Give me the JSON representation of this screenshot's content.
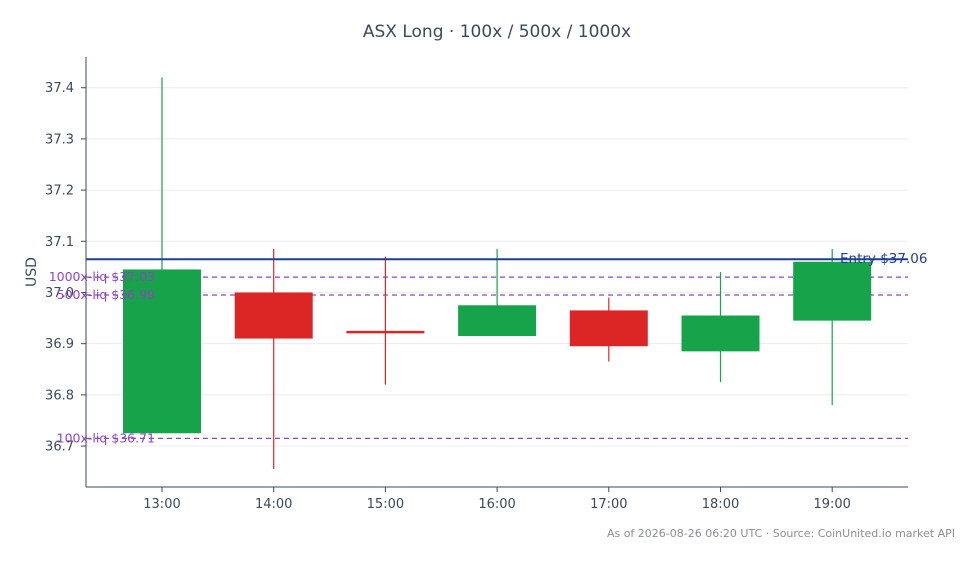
{
  "chart_data": {
    "type": "candlestick",
    "title": "ASX Long · 100x / 500x / 1000x",
    "ylabel": "USD",
    "ylim": [
      36.62,
      37.46
    ],
    "yticks": [
      36.7,
      36.8,
      36.9,
      37.0,
      37.1,
      37.2,
      37.3,
      37.4
    ],
    "ytick_labels": [
      "36.7",
      "36.8",
      "36.9",
      "37.0",
      "37.1",
      "37.2",
      "37.3",
      "37.4"
    ],
    "grid": true,
    "categories": [
      "13:00",
      "14:00",
      "15:00",
      "16:00",
      "17:00",
      "18:00",
      "19:00"
    ],
    "candles": [
      {
        "time": "13:00",
        "open": 36.725,
        "high": 37.42,
        "low": 36.725,
        "close": 37.045
      },
      {
        "time": "14:00",
        "open": 37.0,
        "high": 37.085,
        "low": 36.655,
        "close": 36.91
      },
      {
        "time": "15:00",
        "open": 36.925,
        "high": 37.07,
        "low": 36.82,
        "close": 36.923
      },
      {
        "time": "16:00",
        "open": 36.915,
        "high": 37.085,
        "low": 36.915,
        "close": 36.975
      },
      {
        "time": "17:00",
        "open": 36.965,
        "high": 36.99,
        "low": 36.865,
        "close": 36.895
      },
      {
        "time": "18:00",
        "open": 36.885,
        "high": 37.04,
        "low": 36.825,
        "close": 36.955
      },
      {
        "time": "19:00",
        "open": 36.945,
        "high": 37.085,
        "low": 36.78,
        "close": 37.06
      }
    ],
    "entry": {
      "label": "Entry $37.06",
      "value": 37.065
    },
    "liquidation_levels": [
      {
        "label": "1000x-liq $37.03",
        "value": 37.03
      },
      {
        "label": "500x-liq $36.99",
        "value": 36.995
      },
      {
        "label": "100x-liq $36.71",
        "value": 36.715
      }
    ],
    "colors": {
      "up": "#17a34a",
      "down": "#dc2626",
      "entry": "#1f3f8f",
      "liq": "#8e44c4",
      "axis": "#3a4a5c",
      "grid": "#ececec"
    },
    "footer": "As of 2026-08-26 06:20 UTC · Source: CoinUnited.io market API"
  }
}
